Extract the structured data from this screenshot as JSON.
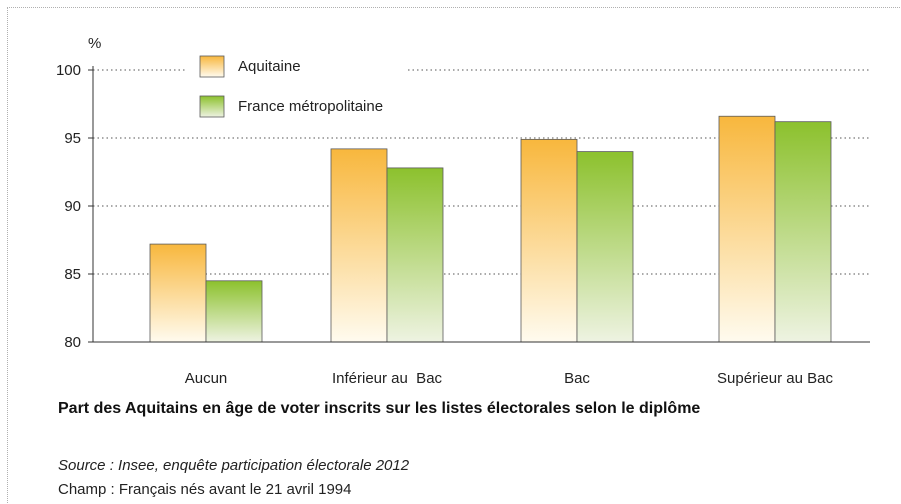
{
  "chart_data": {
    "type": "bar",
    "categories": [
      "Aucun",
      "Inférieur au  Bac",
      "Bac",
      "Supérieur au Bac"
    ],
    "series": [
      {
        "name": "Aquitaine",
        "values": [
          87.2,
          94.2,
          94.9,
          96.6
        ]
      },
      {
        "name": "France métropolitaine",
        "values": [
          84.5,
          92.8,
          94.0,
          96.2
        ]
      }
    ],
    "ylabel": "%",
    "ylim": [
      80,
      100
    ],
    "yticks": [
      80,
      85,
      90,
      95,
      100
    ],
    "grid": true,
    "legend": "top-left",
    "colors": {
      "Aquitaine": {
        "top": "#f8b73d",
        "bottom": "#fffbef"
      },
      "France métropolitaine": {
        "top": "#8cc12d",
        "bottom": "#eef3e2"
      },
      "axis": "#333333",
      "grid": "#555555"
    }
  },
  "caption": {
    "title": "Part des Aquitains en âge de voter inscrits sur les listes électorales selon le diplôme",
    "source": "Source : Insee, enquête participation électorale 2012",
    "scope": "Champ : Français nés avant le 21 avril 1994"
  }
}
